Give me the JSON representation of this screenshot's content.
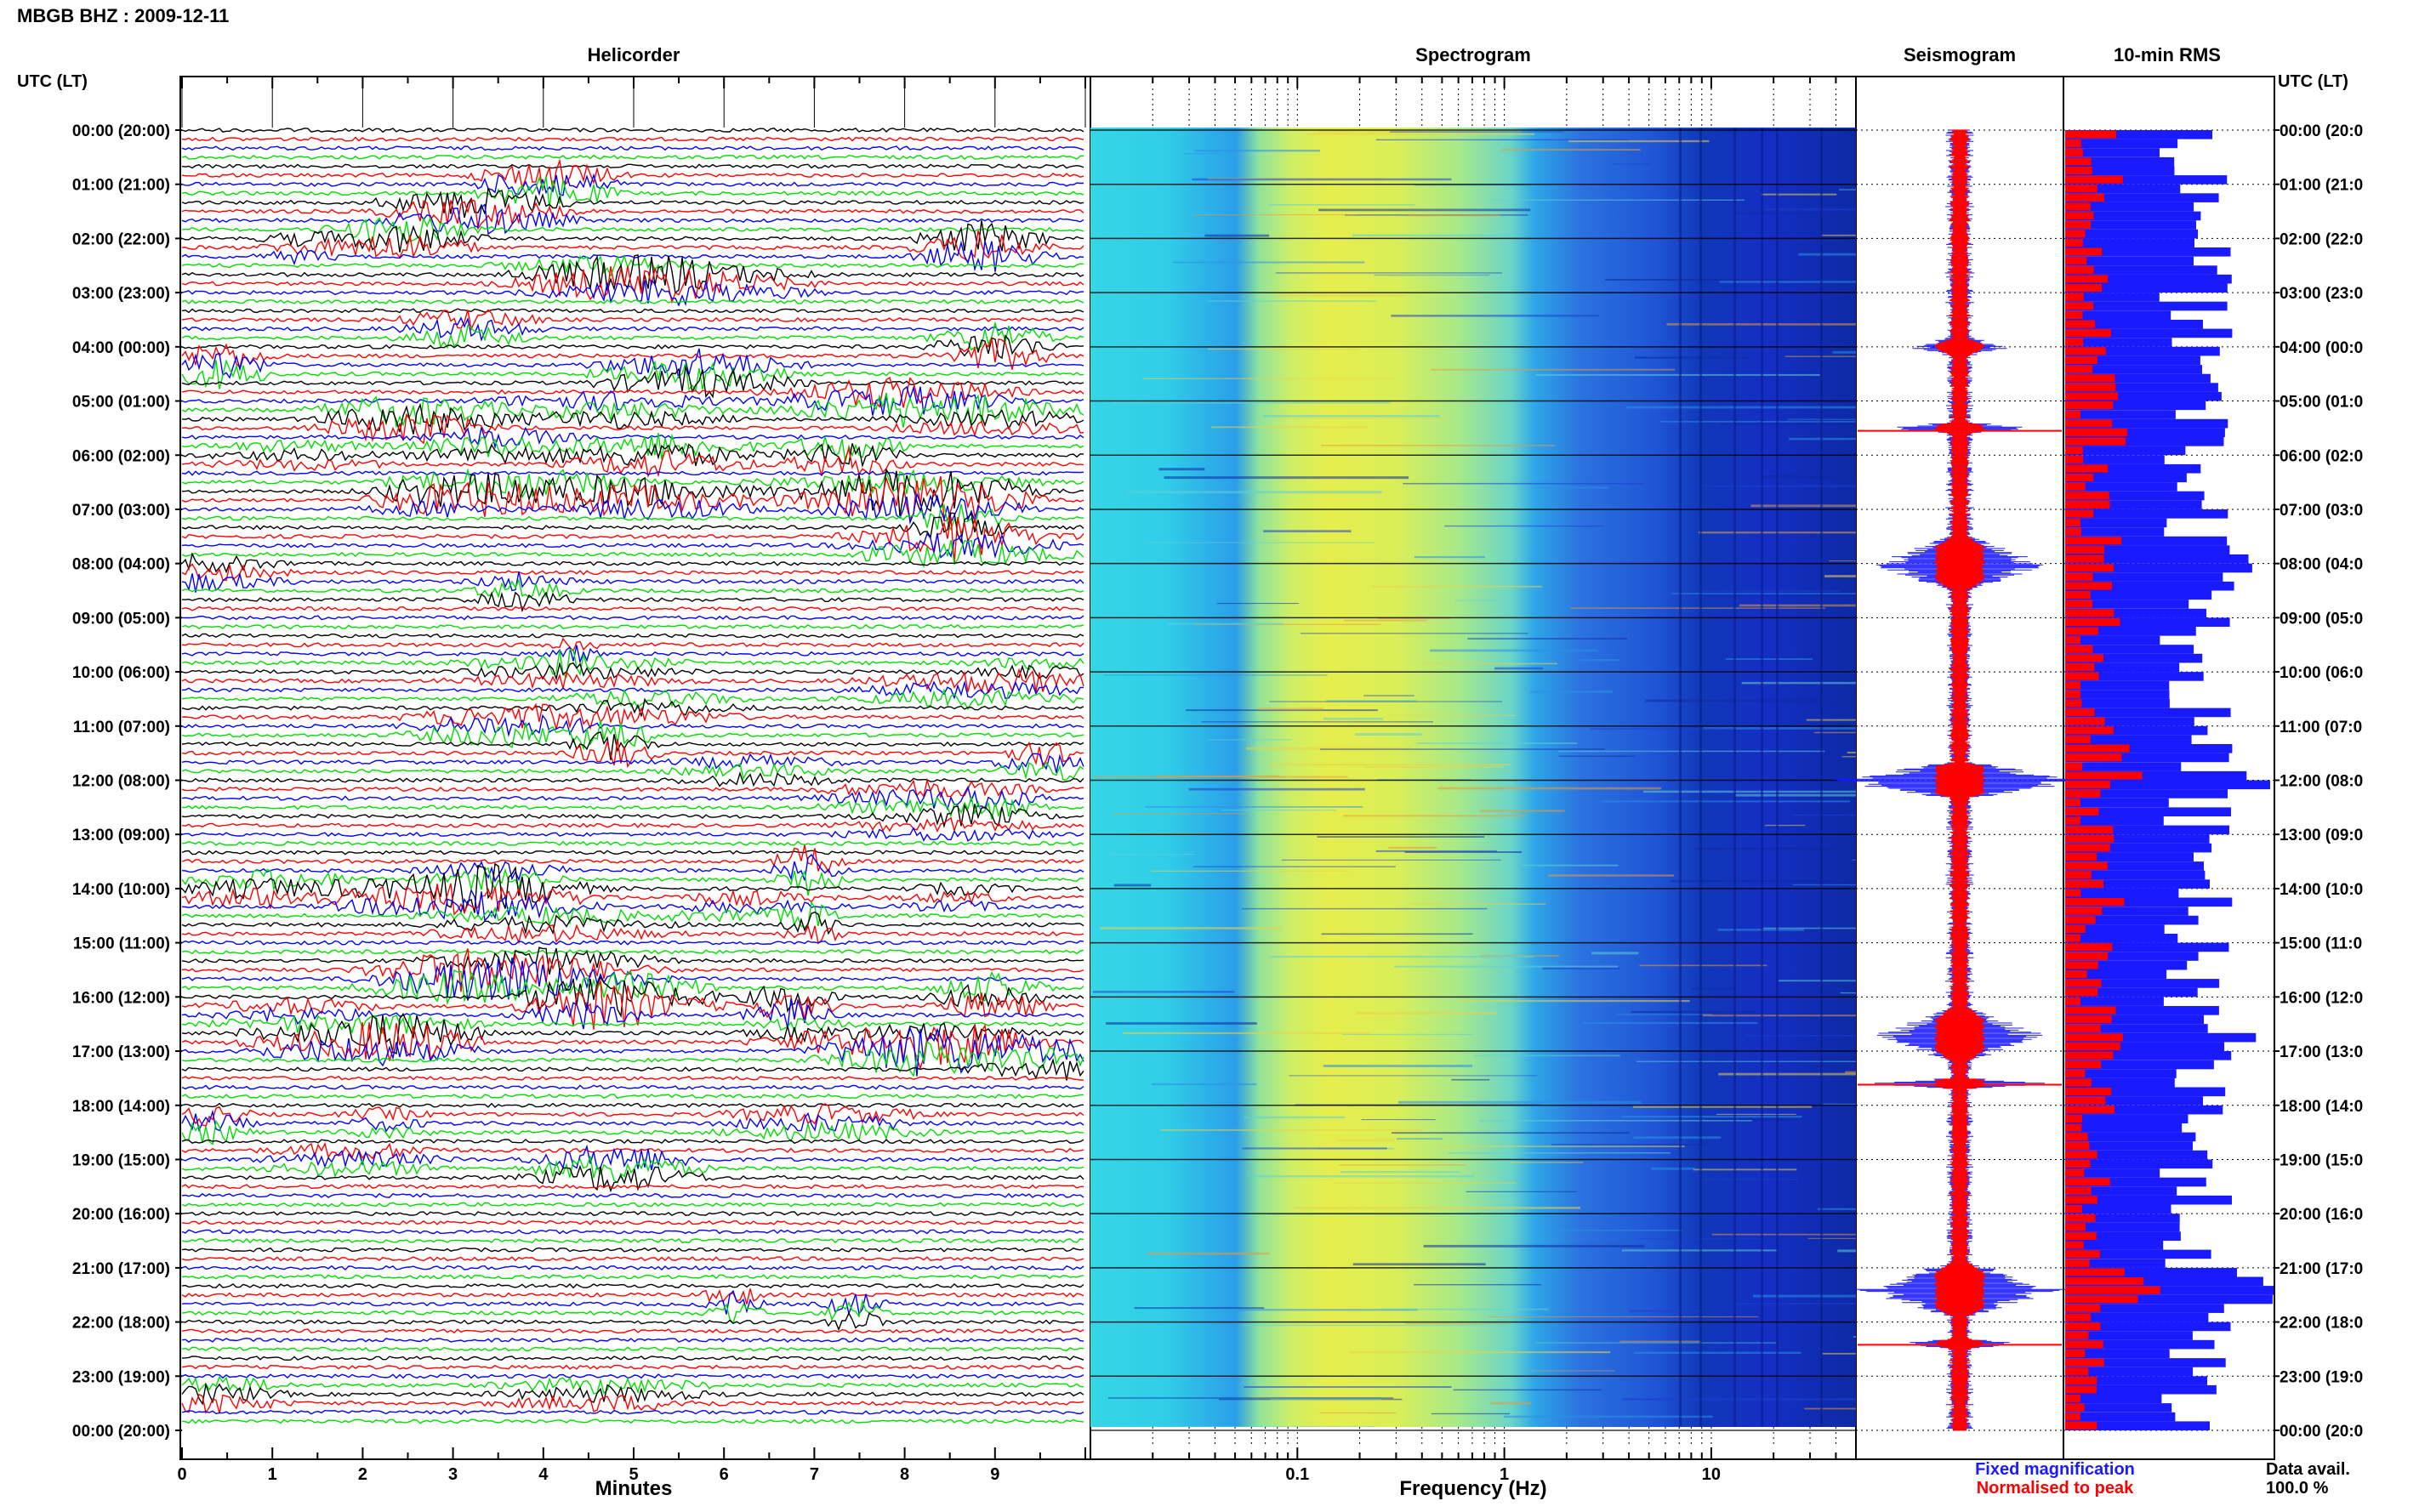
{
  "header": {
    "station_title": "MBGB BHZ : 2009-12-11"
  },
  "panels": {
    "helicorder": "Helicorder",
    "spectrogram": "Spectrogram",
    "seismogram": "Seismogram",
    "rms": "10-min RMS"
  },
  "time_header": "UTC (LT)",
  "time_header_right": "UTC (LT)",
  "time_labels": [
    "00:00 (20:00)",
    "01:00 (21:00)",
    "02:00 (22:00)",
    "03:00 (23:00)",
    "04:00 (00:00)",
    "05:00 (01:00)",
    "06:00 (02:00)",
    "07:00 (03:00)",
    "08:00 (04:00)",
    "09:00 (05:00)",
    "10:00 (06:00)",
    "11:00 (07:00)",
    "12:00 (08:00)",
    "13:00 (09:00)",
    "14:00 (10:00)",
    "15:00 (11:00)",
    "16:00 (12:00)",
    "17:00 (13:00)",
    "18:00 (14:00)",
    "19:00 (15:00)",
    "20:00 (16:00)",
    "21:00 (17:00)",
    "22:00 (18:00)",
    "23:00 (19:00)",
    "00:00 (20:00)"
  ],
  "time_labels_right": [
    "00:00 (20:0",
    "01:00 (21:0",
    "02:00 (22:0",
    "03:00 (23:0",
    "04:00 (00:0",
    "05:00 (01:0",
    "06:00 (02:0",
    "07:00 (03:0",
    "08:00 (04:0",
    "09:00 (05:0",
    "10:00 (06:0",
    "11:00 (07:0",
    "12:00 (08:0",
    "13:00 (09:0",
    "14:00 (10:0",
    "15:00 (11:0",
    "16:00 (12:0",
    "17:00 (13:0",
    "18:00 (14:0",
    "19:00 (15:0",
    "20:00 (16:0",
    "21:00 (17:0",
    "22:00 (18:0",
    "23:00 (19:0",
    "00:00 (20:0"
  ],
  "chart_data": {
    "type": "heatmap",
    "helicorder": {
      "xlabel": "Minutes",
      "x_ticks": [
        "0",
        "1",
        "2",
        "3",
        "4",
        "5",
        "6",
        "7",
        "8",
        "9"
      ],
      "xlim": [
        0,
        10
      ],
      "line_colors": [
        "#000000",
        "#ff0000",
        "#0000ff",
        "#00dd00"
      ],
      "lines_per_hour": 6
    },
    "spectrogram": {
      "xlabel": "Frequency (Hz)",
      "x_ticks": [
        "0.1",
        "1",
        "10"
      ],
      "x_tick_values": [
        0.1,
        1,
        10
      ],
      "xscale": "log",
      "xlim": [
        0.01,
        50
      ]
    },
    "seismogram": {
      "legend": [
        {
          "label": "Fixed magnification",
          "color": "#1a1aff"
        },
        {
          "label": "Normalised to peak",
          "color": "#ff0000"
        }
      ]
    },
    "rms": {
      "series": [
        {
          "label": "Fixed magnification",
          "color": "#1a1aff"
        },
        {
          "label": "Normalised to peak",
          "color": "#ff0000"
        }
      ]
    },
    "data_availability": {
      "label": "Data avail.",
      "value": "100.0 %"
    }
  }
}
